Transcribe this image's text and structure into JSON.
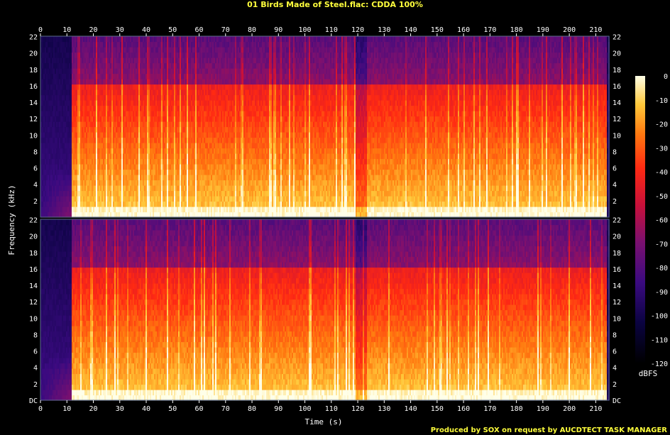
{
  "chart_data": {
    "type": "heatmap",
    "title": "01 Birds Made of Steel.flac: CDDA 100%",
    "xlabel": "Time (s)",
    "ylabel": "Frequency (kHz)",
    "xlim": [
      0,
      215
    ],
    "ylim_khz": [
      0,
      22.05
    ],
    "x_ticks": [
      "0",
      "10",
      "20",
      "30",
      "40",
      "50",
      "60",
      "70",
      "80",
      "90",
      "100",
      "110",
      "120",
      "130",
      "140",
      "150",
      "160",
      "170",
      "180",
      "190",
      "200",
      "210"
    ],
    "y_ticks_channel_1": [
      "2",
      "4",
      "6",
      "8",
      "10",
      "12",
      "14",
      "16",
      "18",
      "20",
      "22"
    ],
    "y_ticks_channel_2": [
      "DC",
      "2",
      "4",
      "6",
      "8",
      "10",
      "12",
      "14",
      "16",
      "18",
      "20",
      "22"
    ],
    "channels": 2,
    "colorbar": {
      "label": "dBFS",
      "ticks": [
        "0",
        "-10",
        "-20",
        "-30",
        "-40",
        "-50",
        "-60",
        "-70",
        "-80",
        "-90",
        "-100",
        "-110",
        "-120"
      ],
      "range": [
        -120,
        0
      ]
    },
    "intro_silence_end_s": 11.5,
    "track_end_s": 214,
    "credit": "Produced by SOX on request by AUCDTECT TASK MANAGER",
    "colors": {
      "background": "#000000",
      "title": "#ffff3c",
      "credit": "#ffff3c",
      "axis": "#ffffff",
      "frame": "#5a6a8a"
    }
  }
}
